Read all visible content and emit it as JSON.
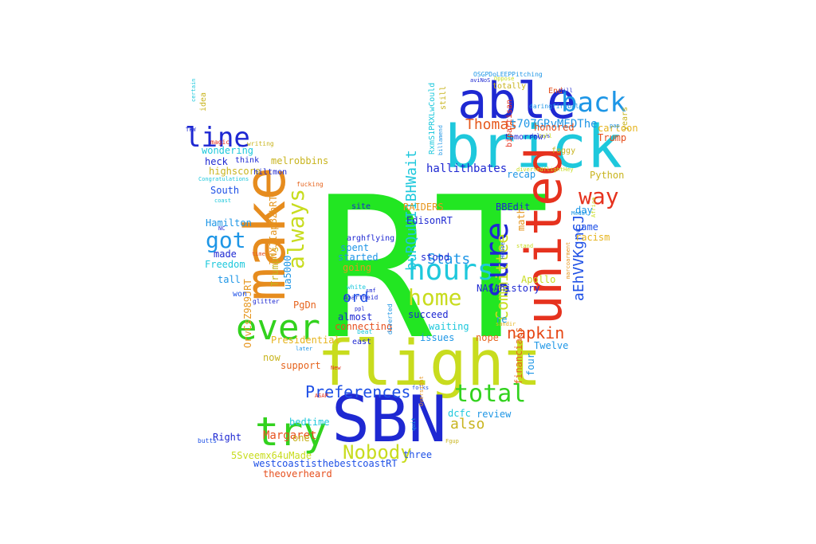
{
  "words": [
    {
      "text": "RT",
      "color": "#22e622"
    },
    {
      "text": "flight",
      "color": "#c8dc1e"
    },
    {
      "text": "SBN",
      "color": "#1e28d2"
    },
    {
      "text": "brick",
      "color": "#1ec8dc"
    },
    {
      "text": "make",
      "color": "#e68c1e"
    },
    {
      "text": "united",
      "color": "#e6321e"
    },
    {
      "text": "able",
      "color": "#1e28d2"
    },
    {
      "text": "back",
      "color": "#1e96e6"
    },
    {
      "text": "try",
      "color": "#32d21e"
    },
    {
      "text": "ever",
      "color": "#32d21e"
    },
    {
      "text": "hours",
      "color": "#1ec8dc"
    },
    {
      "text": "sure",
      "color": "#1e28d2"
    },
    {
      "text": "line",
      "color": "#1e28d2"
    },
    {
      "text": "total",
      "color": "#32d21e"
    },
    {
      "text": "home",
      "color": "#c8dc1e"
    },
    {
      "text": "got",
      "color": "#1e96e6"
    },
    {
      "text": "way",
      "color": "#e6321e"
    },
    {
      "text": "always",
      "color": "#c8dc1e"
    },
    {
      "text": "Nobody",
      "color": "#c8dc1e"
    },
    {
      "text": "Preferences",
      "color": "#1e50e6"
    },
    {
      "text": "Committee",
      "color": "#c8dc1e"
    },
    {
      "text": "napkin",
      "color": "#e64614"
    },
    {
      "text": "Thomas",
      "color": "#e65a1e"
    },
    {
      "text": "Stats",
      "color": "#1e96e6"
    },
    {
      "text": "aEhVVKgnCJ",
      "color": "#1e50e6"
    },
    {
      "text": "buRQuUI1BHWait",
      "color": "#1ec8dc"
    },
    {
      "text": "also",
      "color": "#c8b41e"
    },
    {
      "text": "ord",
      "color": "#1e50e6"
    },
    {
      "text": "t707GRvMEDThe",
      "color": "#1e96e6"
    },
    {
      "text": "hallithbates",
      "color": "#1e28d2"
    },
    {
      "text": "Margaret",
      "color": "#e6501e"
    },
    {
      "text": "westcoastisthebestcoastRT",
      "color": "#1e50e6"
    },
    {
      "text": "theoverheard",
      "color": "#e6501e"
    },
    {
      "text": "5Sveemx64uMade",
      "color": "#c8dc1e"
    },
    {
      "text": "Right",
      "color": "#1e28d2"
    },
    {
      "text": "bedtime",
      "color": "#1ec8dc"
    },
    {
      "text": "review",
      "color": "#1e96e6"
    },
    {
      "text": "dcfc",
      "color": "#1ec8dc"
    },
    {
      "text": "three",
      "color": "#1e50e6"
    },
    {
      "text": "one",
      "color": "#c8b41e"
    },
    {
      "text": "Twelve",
      "color": "#1e96e6"
    },
    {
      "text": "Apollo",
      "color": "#c8dc1e"
    },
    {
      "text": "four",
      "color": "#1e96e6"
    },
    {
      "text": "financials",
      "color": "#e6641e"
    },
    {
      "text": "nope",
      "color": "#e6641e"
    },
    {
      "text": "issues",
      "color": "#1e96e6"
    },
    {
      "text": "waiting",
      "color": "#1ec8dc"
    },
    {
      "text": "succeed",
      "color": "#1e28d2"
    },
    {
      "text": "connecting",
      "color": "#e6501e"
    },
    {
      "text": "almost",
      "color": "#1e28d2"
    },
    {
      "text": "Presidential",
      "color": "#e6b41e"
    },
    {
      "text": "OrvCsZ989JRT",
      "color": "#e6961e"
    },
    {
      "text": "support",
      "color": "#e6641e"
    },
    {
      "text": "now",
      "color": "#c8b41e"
    },
    {
      "text": "PgDn",
      "color": "#e6641e"
    },
    {
      "text": "ua5000",
      "color": "#1e96e6"
    },
    {
      "text": "Trump's",
      "color": "#c8b41e"
    },
    {
      "text": "TNXJIapBZhRT",
      "color": "#e6961e"
    },
    {
      "text": "stood",
      "color": "#1e28d2"
    },
    {
      "text": "started",
      "color": "#1e96e6"
    },
    {
      "text": "going",
      "color": "#e6961e"
    },
    {
      "text": "spent",
      "color": "#1e96e6"
    },
    {
      "text": "EdisonRT",
      "color": "#1e28d2"
    },
    {
      "text": "RAIDERS",
      "color": "#e6961e"
    },
    {
      "text": "BBEdit",
      "color": "#1e28d2"
    },
    {
      "text": "NASAhistory",
      "color": "#1e28d2"
    },
    {
      "text": "re",
      "color": "#1e96e6"
    },
    {
      "text": "math",
      "color": "#e6961e"
    },
    {
      "text": "racism",
      "color": "#e6b41e"
    },
    {
      "text": "game",
      "color": "#1e50e6"
    },
    {
      "text": "recap",
      "color": "#1e96e6"
    },
    {
      "text": "day",
      "color": "#1e96e6"
    },
    {
      "text": "Python",
      "color": "#c8b41e"
    },
    {
      "text": "honored",
      "color": "#e6501e"
    },
    {
      "text": "cartoon",
      "color": "#e6b41e"
    },
    {
      "text": "Trump",
      "color": "#e6501e"
    },
    {
      "text": "tomorrow",
      "color": "#1e28d2"
    },
    {
      "text": "foggy",
      "color": "#c8b41e"
    },
    {
      "text": "bipartisan",
      "color": "#e6321e"
    },
    {
      "text": "totally",
      "color": "#c8b41e"
    },
    {
      "text": "End",
      "color": "#e6501e"
    },
    {
      "text": "daringfireball",
      "color": "#1e96e6"
    },
    {
      "text": "melrobbins",
      "color": "#c8b41e"
    },
    {
      "text": "highscore",
      "color": "#c8b41e"
    },
    {
      "text": "South",
      "color": "#1e50e6"
    },
    {
      "text": "heck",
      "color": "#1e28d2"
    },
    {
      "text": "wondering",
      "color": "#1ec8dc"
    },
    {
      "text": "Hamilton",
      "color": "#1e96e6"
    },
    {
      "text": "Freedom",
      "color": "#1ec8dc"
    },
    {
      "text": "made",
      "color": "#1e28d2"
    },
    {
      "text": "tall",
      "color": "#1e96e6"
    },
    {
      "text": "won",
      "color": "#1e50e6"
    },
    {
      "text": "idea",
      "color": "#c8b41e"
    },
    {
      "text": "magic",
      "color": "#e6321e"
    },
    {
      "text": "still",
      "color": "#c8b41e"
    },
    {
      "text": "years",
      "color": "#c8b41e"
    },
    {
      "text": "hiltmon",
      "color": "#1e28d2"
    },
    {
      "text": "think",
      "color": "#1e28d2"
    },
    {
      "text": "writing",
      "color": "#c8b41e"
    },
    {
      "text": "site",
      "color": "#1e28d2"
    },
    {
      "text": "arghflying",
      "color": "#1e28d2"
    },
    {
      "text": "Apartheid",
      "color": "#1e28d2"
    },
    {
      "text": "fucking",
      "color": "#e6641e"
    },
    {
      "text": "Congratulations",
      "color": "#1ec8dc"
    },
    {
      "text": "certain",
      "color": "#1ec8dc"
    },
    {
      "text": "TFW",
      "color": "#1e28d2"
    },
    {
      "text": "coast",
      "color": "#1ec8dc"
    },
    {
      "text": "NC",
      "color": "#1e28d2"
    },
    {
      "text": "time",
      "color": "#e6501e"
    },
    {
      "text": "white",
      "color": "#1ec8dc"
    },
    {
      "text": "glitter",
      "color": "#1e28d2"
    },
    {
      "text": "ppl",
      "color": "#1e28d2"
    },
    {
      "text": "beat",
      "color": "#1ec8dc"
    },
    {
      "text": "east",
      "color": "#1e28d2"
    },
    {
      "text": "later",
      "color": "#1e96e6"
    },
    {
      "text": "diverted",
      "color": "#1e96e6"
    },
    {
      "text": "New",
      "color": "#e6321e"
    },
    {
      "text": "ASAP",
      "color": "#e6321e"
    },
    {
      "text": "folks",
      "color": "#1e50e6"
    },
    {
      "text": "Oversight",
      "color": "#e6961e"
    },
    {
      "text": "quit",
      "color": "#1e96e6"
    },
    {
      "text": "Fgup",
      "color": "#c8b41e"
    },
    {
      "text": "butts",
      "color": "#1e50e6"
    },
    {
      "text": "Medal",
      "color": "#1e96e6"
    },
    {
      "text": "Africa",
      "color": "#c8dc1e"
    },
    {
      "text": "stand",
      "color": "#c8dc1e"
    },
    {
      "text": "House",
      "color": "#1e50e6"
    },
    {
      "text": "marcoarment",
      "color": "#e6961e"
    },
    {
      "text": "sandir",
      "color": "#e6b41e"
    },
    {
      "text": "smf",
      "color": "#1e28d2"
    },
    {
      "text": "divertedflightHey",
      "color": "#c8dc1e"
    },
    {
      "text": "delays",
      "color": "#1e28d2"
    },
    {
      "text": "tall",
      "color": "#c8dc1e"
    },
    {
      "text": "Will",
      "color": "#1e28d2"
    },
    {
      "text": "pap",
      "color": "#1e96e6"
    },
    {
      "text": "RxmS1PRXLwCould",
      "color": "#1ec8dc"
    },
    {
      "text": "billamend",
      "color": "#1e96e6"
    },
    {
      "text": "OSGPDoLEEPPitching",
      "color": "#1e96e6"
    },
    {
      "text": "aviNoS",
      "color": "#1e28d2"
    },
    {
      "text": "Oppose",
      "color": "#c8dc1e"
    }
  ]
}
